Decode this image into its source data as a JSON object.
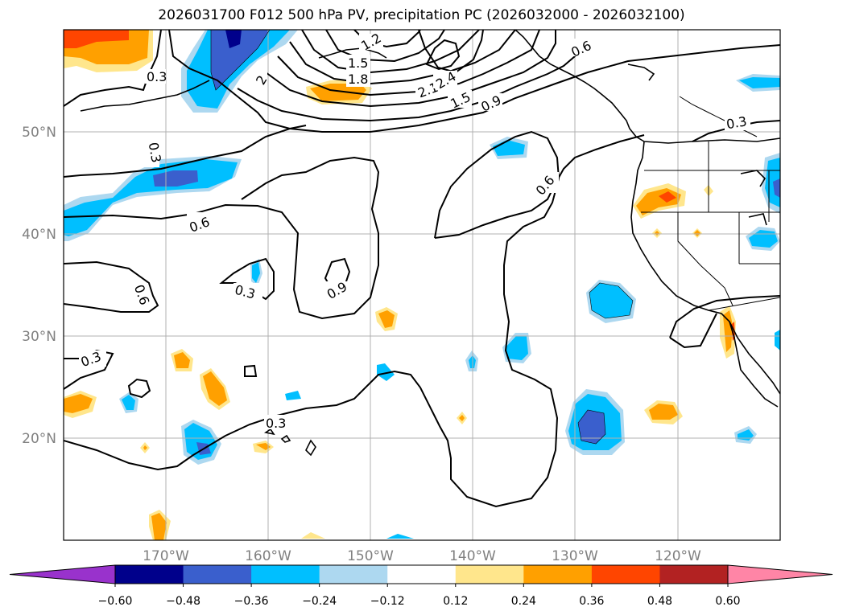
{
  "title": "2026031700 F012 500 hPa PV, precipitation PC (2026032000 - 2026032100)",
  "map": {
    "lon_labels": [
      "170°W",
      "160°W",
      "150°W",
      "140°W",
      "130°W",
      "120°W"
    ],
    "lat_labels": [
      "50°N",
      "40°N",
      "30°N",
      "20°N"
    ],
    "contour_labels": [
      "0.3",
      "0.3",
      "0.6",
      "0.6",
      "0.3",
      "0.9",
      "0.3",
      "0.3",
      "1.2",
      "1.5",
      "1.8",
      "2.1",
      "2.4",
      "1.5",
      "0.9",
      "0.6",
      "0.6",
      "0.3",
      "2"
    ]
  },
  "colorbar": {
    "ticks": [
      "−0.60",
      "−0.48",
      "−0.36",
      "−0.24",
      "−0.12",
      "0.12",
      "0.24",
      "0.36",
      "0.48",
      "0.60"
    ],
    "colors": [
      "#9932cc",
      "#00008b",
      "#3a5fcd",
      "#00bfff",
      "#add8f0",
      "#ffffff",
      "#ffe68c",
      "#ffa000",
      "#ff4500",
      "#b22222",
      "#ff85a6"
    ]
  }
}
